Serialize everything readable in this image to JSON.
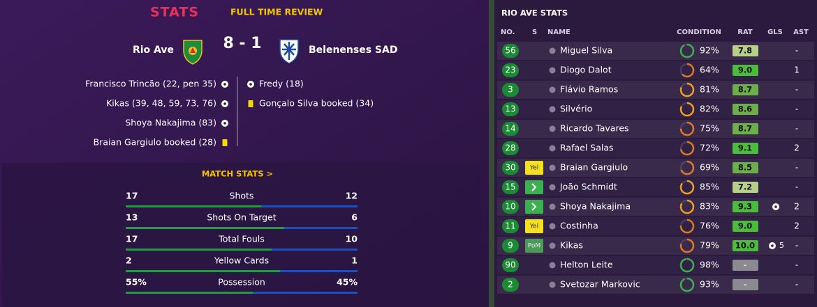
{
  "header": {
    "title": "STATS",
    "subtitle": "FULL TIME REVIEW"
  },
  "match": {
    "home": "Rio Ave",
    "score": "8 - 1",
    "away": "Belenenses SAD"
  },
  "home_events": [
    {
      "text": "Francisco Trincão (22, pen 35)",
      "kind": "goal"
    },
    {
      "text": "Kikas (39, 48, 59, 73, 76)",
      "kind": "goal"
    },
    {
      "text": "Shoya Nakajima (83)",
      "kind": "goal"
    },
    {
      "text": "Braian Gargiulo booked (28)",
      "kind": "booking"
    }
  ],
  "away_events": [
    {
      "text": "Fredy (18)",
      "kind": "goal"
    },
    {
      "text": "Gonçalo Silva booked (34)",
      "kind": "booking"
    }
  ],
  "match_stats": {
    "title": "MATCH STATS >",
    "home_color": "#1e9e3e",
    "away_color": "#1b4fc4",
    "rows": [
      {
        "label": "Shots",
        "home": 17,
        "away": 12
      },
      {
        "label": "Shots On Target",
        "home": 13,
        "away": 6
      },
      {
        "label": "Total Fouls",
        "home": 17,
        "away": 10
      },
      {
        "label": "Yellow Cards",
        "home": 2,
        "away": 1
      },
      {
        "label": "Possession",
        "home": 55,
        "away": 45,
        "home_label": "55%",
        "away_label": "45%"
      }
    ]
  },
  "player_table": {
    "title": "RIO AVE STATS",
    "columns": [
      "NO.",
      "S",
      "NAME",
      "CONDITION",
      "RAT",
      "GLS",
      "AST"
    ],
    "rows": [
      {
        "no": "56",
        "name": "Miguel Silva",
        "condition": 92,
        "condition_label": "92%",
        "rating": "7.8",
        "assists": "-"
      },
      {
        "no": "23",
        "name": "Diogo Dalot",
        "condition": 64,
        "condition_label": "64%",
        "rating": "9.0",
        "assists": "1"
      },
      {
        "no": "3",
        "name": "Flávio Ramos",
        "condition": 81,
        "condition_label": "81%",
        "rating": "8.7",
        "assists": "-"
      },
      {
        "no": "13",
        "name": "Silvério",
        "condition": 82,
        "condition_label": "82%",
        "rating": "8.6",
        "assists": "-"
      },
      {
        "no": "14",
        "name": "Ricardo Tavares",
        "condition": 75,
        "condition_label": "75%",
        "rating": "8.7",
        "assists": "-"
      },
      {
        "no": "28",
        "name": "Rafael Salas",
        "condition": 72,
        "condition_label": "72%",
        "rating": "9.1",
        "assists": "2"
      },
      {
        "no": "30",
        "status": "Yel",
        "name": "Braian Gargiulo",
        "condition": 69,
        "condition_label": "69%",
        "rating": "8.5",
        "assists": "-"
      },
      {
        "no": "15",
        "sub": true,
        "name": "João Schmidt",
        "condition": 85,
        "condition_label": "85%",
        "rating": "7.2",
        "assists": "-"
      },
      {
        "no": "10",
        "sub": true,
        "name": "Shoya Nakajima",
        "condition": 83,
        "condition_label": "83%",
        "rating": "9.3",
        "scored": true,
        "assists": "2"
      },
      {
        "no": "11",
        "status": "Yel",
        "name": "Costinha",
        "condition": 76,
        "condition_label": "76%",
        "rating": "9.0",
        "assists": "2"
      },
      {
        "no": "9",
        "status": "PoM",
        "name": "Kikas",
        "condition": 79,
        "condition_label": "79%",
        "rating": "10.0",
        "scored": true,
        "goals": "5",
        "assists": "-"
      },
      {
        "no": "90",
        "unused": true,
        "name": "Helton Leite",
        "condition": 98,
        "condition_label": "98%",
        "rating": "-",
        "assists": "-"
      },
      {
        "no": "2",
        "unused": true,
        "name": "Svetozar Markovic",
        "condition": 93,
        "condition_label": "93%",
        "rating": "-",
        "assists": "-"
      }
    ]
  }
}
